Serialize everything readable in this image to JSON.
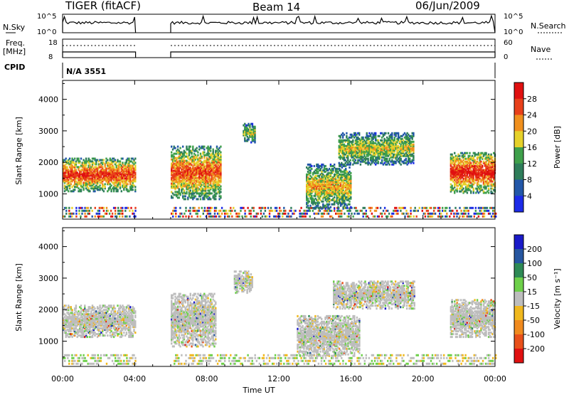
{
  "header": {
    "radar": "TIGER (fitACF)",
    "beam": "Beam 14",
    "date": "06/Jun/2009"
  },
  "status_panels": {
    "nsky_label": "N.Sky",
    "nsky_ticks": [
      "10^5",
      "10^0"
    ],
    "nsearch_label": "N.Search",
    "nsearch_ticks": [
      "10^5",
      "10^0"
    ],
    "freq_label": "Freq.",
    "freq_unit": "[MHz]",
    "freq_ticks": [
      "18",
      "8"
    ],
    "nave_label": "Nave",
    "nave_ticks": [
      "60",
      "0"
    ],
    "cpid_label": "CPID",
    "cpid_value": "N/A 3551"
  },
  "chart_data": [
    {
      "type": "heatmap",
      "name": "power",
      "ylabel": "Slant Range [km]",
      "xlabel": "",
      "x_ticks": [
        "00:00",
        "04:00",
        "08:00",
        "12:00",
        "16:00",
        "20:00",
        "00:00"
      ],
      "y_ticks": [
        1000,
        2000,
        3000,
        4000
      ],
      "ylim": [
        200,
        4600
      ],
      "xlim_hours": [
        0,
        24
      ],
      "colorbar": {
        "title": "Power [dB]",
        "ticks": [
          4,
          8,
          12,
          16,
          20,
          24,
          28
        ],
        "colors": [
          "#1c2be8",
          "#2257a8",
          "#2e7d5a",
          "#3fa04b",
          "#e6d12a",
          "#f0901e",
          "#e8401a",
          "#e01010"
        ]
      },
      "regions": [
        {
          "t0": 0.0,
          "t1": 4.0,
          "r0": 1050,
          "r1": 2100,
          "level": 0.75
        },
        {
          "t0": 6.0,
          "t1": 8.8,
          "r0": 800,
          "r1": 2500,
          "level": 0.7
        },
        {
          "t0": 10.0,
          "t1": 10.7,
          "r0": 2600,
          "r1": 3200,
          "level": 0.45
        },
        {
          "t0": 13.5,
          "t1": 16.0,
          "r0": 500,
          "r1": 1900,
          "level": 0.55
        },
        {
          "t0": 15.3,
          "t1": 19.5,
          "r0": 1900,
          "r1": 2900,
          "level": 0.5
        },
        {
          "t0": 21.5,
          "t1": 24.0,
          "r0": 1000,
          "r1": 2300,
          "level": 0.8
        }
      ]
    },
    {
      "type": "heatmap",
      "name": "velocity",
      "ylabel": "Slant Range [km]",
      "xlabel": "Time UT",
      "x_ticks": [
        "00:00",
        "04:00",
        "08:00",
        "12:00",
        "16:00",
        "20:00",
        "00:00"
      ],
      "y_ticks": [
        1000,
        2000,
        3000,
        4000
      ],
      "ylim": [
        200,
        4600
      ],
      "xlim_hours": [
        0,
        24
      ],
      "colorbar": {
        "title": "Velocity [m s⁻¹]",
        "ticks": [
          200,
          100,
          50,
          15,
          -15,
          -50,
          -100,
          -200
        ],
        "colors": [
          "#1a1ac8",
          "#2656a0",
          "#2e8a55",
          "#6ed04a",
          "#bdbdbd",
          "#f0b81e",
          "#f08a1e",
          "#e8501a",
          "#e01010"
        ]
      },
      "regions": [
        {
          "t0": 0.0,
          "t1": 4.0,
          "r0": 1100,
          "r1": 2100
        },
        {
          "t0": 6.0,
          "t1": 8.5,
          "r0": 800,
          "r1": 2500
        },
        {
          "t0": 9.5,
          "t1": 10.5,
          "r0": 2500,
          "r1": 3200
        },
        {
          "t0": 13.0,
          "t1": 16.5,
          "r0": 500,
          "r1": 1800
        },
        {
          "t0": 15.0,
          "t1": 19.5,
          "r0": 2000,
          "r1": 2900
        },
        {
          "t0": 21.5,
          "t1": 24.0,
          "r0": 1100,
          "r1": 2300
        }
      ]
    }
  ]
}
